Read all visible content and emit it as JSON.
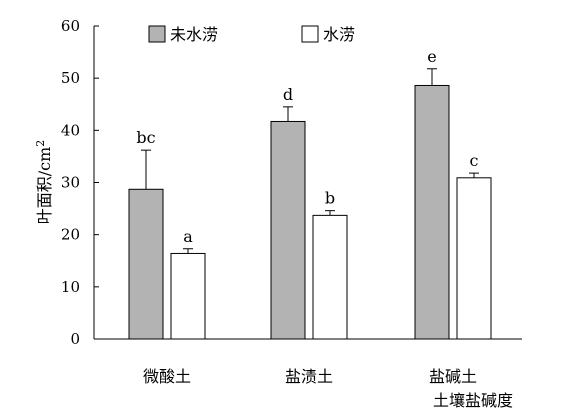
{
  "chart_data": {
    "type": "bar",
    "categories": [
      "微酸土",
      "盐渍土",
      "盐碱土"
    ],
    "series": [
      {
        "name": "未水涝",
        "values": [
          28.7,
          41.7,
          48.6
        ],
        "error": [
          7.5,
          2.8,
          3.2
        ],
        "sig": [
          "bc",
          "d",
          "e"
        ],
        "color": "#b3b3b3"
      },
      {
        "name": "水涝",
        "values": [
          16.4,
          23.7,
          30.9
        ],
        "error": [
          0.9,
          0.9,
          0.9
        ],
        "sig": [
          "a",
          "b",
          "c"
        ],
        "color": "#ffffff"
      }
    ],
    "ylabel": "叶面积/cm",
    "ylabel_superscript": "2",
    "xlabel": "土壤盐碱度",
    "ylim": [
      0,
      60
    ],
    "yticks": [
      0,
      10,
      20,
      30,
      40,
      50,
      60
    ],
    "legend_position": "top",
    "grid": false
  }
}
